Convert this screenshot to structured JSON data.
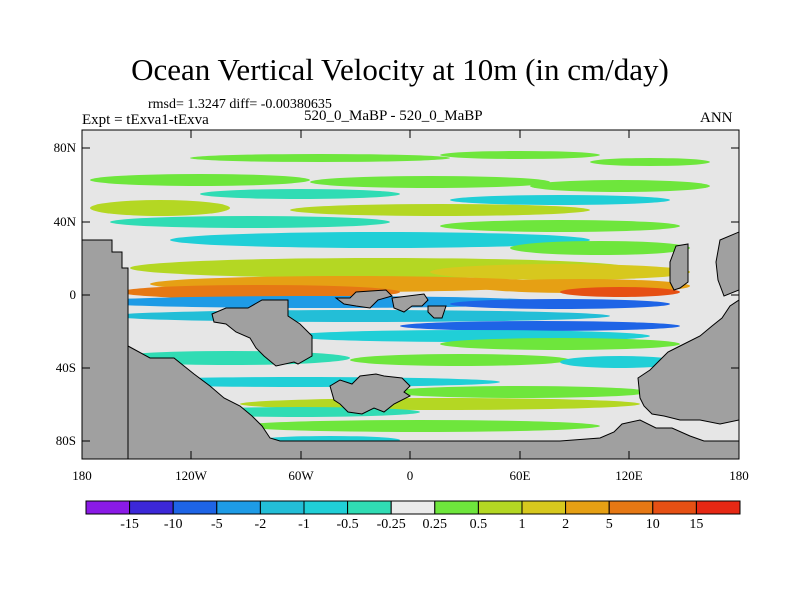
{
  "title": "Ocean Vertical Velocity at 10m (in cm/day)",
  "stats": "rmsd= 1.3247 diff= -0.00380635",
  "expt": "Expt = tExva1-tExva",
  "subtitle": "520_0_MaBP - 520_0_MaBP",
  "season": "ANN",
  "lat_labels": [
    "80N",
    "40N",
    "0",
    "40S",
    "80S"
  ],
  "lon_labels": [
    "180",
    "120W",
    "60W",
    "0",
    "60E",
    "120E",
    "180"
  ],
  "colorbar": {
    "labels": [
      "-15",
      "-10",
      "-5",
      "-2",
      "-1",
      "-0.5",
      "-0.25",
      "0.25",
      "0.5",
      "1",
      "2",
      "5",
      "10",
      "15"
    ],
    "colors": [
      "#8a1ae6",
      "#3c28d8",
      "#1e64e6",
      "#1e9be6",
      "#23bed7",
      "#20cfd7",
      "#30dcb4",
      "#ebebeb",
      "#6ee63c",
      "#b4d723",
      "#d7c81e",
      "#e6a014",
      "#e67814",
      "#e65014",
      "#e62814"
    ]
  },
  "land_color": "#a0a0a0",
  "ocean_color": "#e6e6e6"
}
